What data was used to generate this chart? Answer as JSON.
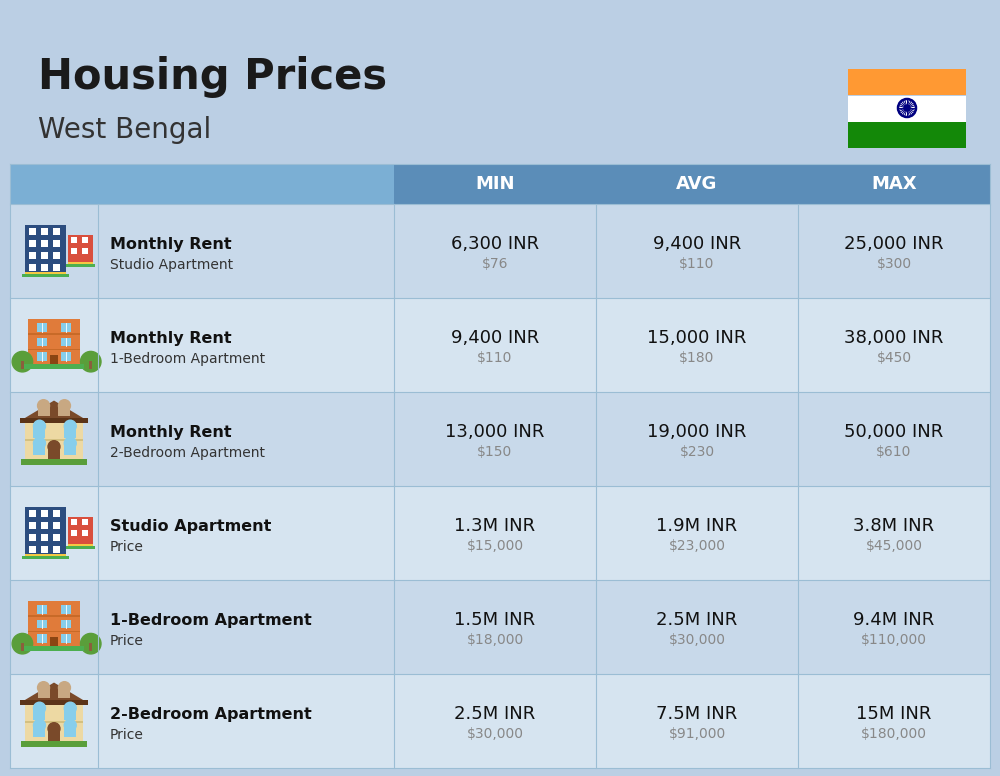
{
  "title": "Housing Prices",
  "subtitle": "West Bengal",
  "background_color": "#BBCFE4",
  "header_bg_color": "#5B8DB8",
  "header_text_color": "#FFFFFF",
  "row_bg_colors": [
    "#C8D9EA",
    "#D6E4F0"
  ],
  "col_headers": [
    "MIN",
    "AVG",
    "MAX"
  ],
  "rows": [
    {
      "icon_type": "studio_blue",
      "bold_text": "Monthly Rent",
      "sub_text": "Studio Apartment",
      "min_inr": "6,300 INR",
      "min_usd": "$76",
      "avg_inr": "9,400 INR",
      "avg_usd": "$110",
      "max_inr": "25,000 INR",
      "max_usd": "$300"
    },
    {
      "icon_type": "apartment_orange",
      "bold_text": "Monthly Rent",
      "sub_text": "1-Bedroom Apartment",
      "min_inr": "9,400 INR",
      "min_usd": "$110",
      "avg_inr": "15,000 INR",
      "avg_usd": "$180",
      "max_inr": "38,000 INR",
      "max_usd": "$450"
    },
    {
      "icon_type": "apartment_tan",
      "bold_text": "Monthly Rent",
      "sub_text": "2-Bedroom Apartment",
      "min_inr": "13,000 INR",
      "min_usd": "$150",
      "avg_inr": "19,000 INR",
      "avg_usd": "$230",
      "max_inr": "50,000 INR",
      "max_usd": "$610"
    },
    {
      "icon_type": "studio_blue",
      "bold_text": "Studio Apartment",
      "sub_text": "Price",
      "min_inr": "1.3M INR",
      "min_usd": "$15,000",
      "avg_inr": "1.9M INR",
      "avg_usd": "$23,000",
      "max_inr": "3.8M INR",
      "max_usd": "$45,000"
    },
    {
      "icon_type": "apartment_orange",
      "bold_text": "1-Bedroom Apartment",
      "sub_text": "Price",
      "min_inr": "1.5M INR",
      "min_usd": "$18,000",
      "avg_inr": "2.5M INR",
      "avg_usd": "$30,000",
      "max_inr": "9.4M INR",
      "max_usd": "$110,000"
    },
    {
      "icon_type": "apartment_tan",
      "bold_text": "2-Bedroom Apartment",
      "sub_text": "Price",
      "min_inr": "2.5M INR",
      "min_usd": "$30,000",
      "avg_inr": "7.5M INR",
      "avg_usd": "$91,000",
      "max_inr": "15M INR",
      "max_usd": "$180,000"
    }
  ]
}
